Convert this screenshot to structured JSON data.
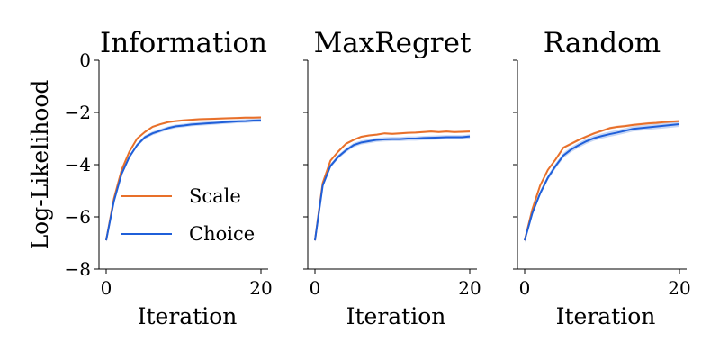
{
  "chart_data": [
    {
      "type": "line",
      "title": "Information",
      "xlabel": "Iteration",
      "ylabel": "Log-Likelihood",
      "xlim": [
        0,
        20
      ],
      "ylim": [
        -8,
        0
      ],
      "xticks": [
        "0",
        "20"
      ],
      "yticks": [
        "0",
        "−2",
        "−4",
        "−6",
        "−8"
      ],
      "legend": "lower-right",
      "x": [
        0,
        1,
        2,
        3,
        4,
        5,
        6,
        7,
        8,
        9,
        10,
        11,
        12,
        13,
        14,
        15,
        16,
        17,
        18,
        19,
        20
      ],
      "series": [
        {
          "name": "Scale",
          "color": "#e8702a",
          "values": [
            -6.9,
            -5.3,
            -4.2,
            -3.5,
            -3.0,
            -2.75,
            -2.55,
            -2.45,
            -2.37,
            -2.33,
            -2.3,
            -2.28,
            -2.26,
            -2.25,
            -2.24,
            -2.23,
            -2.22,
            -2.21,
            -2.2,
            -2.2,
            -2.19
          ],
          "band": 0.04
        },
        {
          "name": "Choice",
          "color": "#1f5fd9",
          "values": [
            -6.9,
            -5.4,
            -4.35,
            -3.7,
            -3.25,
            -2.95,
            -2.8,
            -2.7,
            -2.6,
            -2.53,
            -2.5,
            -2.46,
            -2.44,
            -2.42,
            -2.4,
            -2.38,
            -2.36,
            -2.34,
            -2.33,
            -2.31,
            -2.3
          ],
          "band": 0.07
        }
      ]
    },
    {
      "type": "line",
      "title": "MaxRegret",
      "xlabel": "Iteration",
      "ylabel": "",
      "xlim": [
        0,
        20
      ],
      "ylim": [
        -8,
        0
      ],
      "xticks": [
        "0",
        "20"
      ],
      "yticks": [],
      "x": [
        0,
        1,
        2,
        3,
        4,
        5,
        6,
        7,
        8,
        9,
        10,
        11,
        12,
        13,
        14,
        15,
        16,
        17,
        18,
        19,
        20
      ],
      "series": [
        {
          "name": "Scale",
          "color": "#e8702a",
          "values": [
            -6.9,
            -4.7,
            -3.85,
            -3.5,
            -3.2,
            -3.05,
            -2.93,
            -2.88,
            -2.85,
            -2.8,
            -2.82,
            -2.8,
            -2.78,
            -2.77,
            -2.75,
            -2.73,
            -2.75,
            -2.73,
            -2.75,
            -2.74,
            -2.73
          ],
          "band": 0.04
        },
        {
          "name": "Choice",
          "color": "#1f5fd9",
          "values": [
            -6.9,
            -4.8,
            -4.05,
            -3.7,
            -3.45,
            -3.25,
            -3.15,
            -3.1,
            -3.05,
            -3.03,
            -3.02,
            -3.02,
            -3.0,
            -3.0,
            -2.98,
            -2.97,
            -2.96,
            -2.95,
            -2.95,
            -2.95,
            -2.92
          ],
          "band": 0.08
        }
      ]
    },
    {
      "type": "line",
      "title": "Random",
      "xlabel": "Iteration",
      "ylabel": "",
      "xlim": [
        0,
        20
      ],
      "ylim": [
        -8,
        0
      ],
      "xticks": [
        "0",
        "20"
      ],
      "yticks": [],
      "x": [
        0,
        1,
        2,
        3,
        4,
        5,
        6,
        7,
        8,
        9,
        10,
        11,
        12,
        13,
        14,
        15,
        16,
        17,
        18,
        19,
        20
      ],
      "series": [
        {
          "name": "Scale",
          "color": "#e8702a",
          "values": [
            -6.9,
            -5.7,
            -4.8,
            -4.2,
            -3.8,
            -3.35,
            -3.2,
            -3.05,
            -2.92,
            -2.8,
            -2.7,
            -2.6,
            -2.55,
            -2.52,
            -2.48,
            -2.45,
            -2.42,
            -2.4,
            -2.37,
            -2.35,
            -2.33
          ],
          "band": 0.05
        },
        {
          "name": "Choice",
          "color": "#1f5fd9",
          "values": [
            -6.9,
            -5.85,
            -5.1,
            -4.5,
            -4.05,
            -3.65,
            -3.42,
            -3.25,
            -3.1,
            -2.98,
            -2.9,
            -2.83,
            -2.77,
            -2.7,
            -2.63,
            -2.6,
            -2.57,
            -2.54,
            -2.51,
            -2.48,
            -2.45
          ],
          "band": 0.1
        }
      ]
    }
  ]
}
